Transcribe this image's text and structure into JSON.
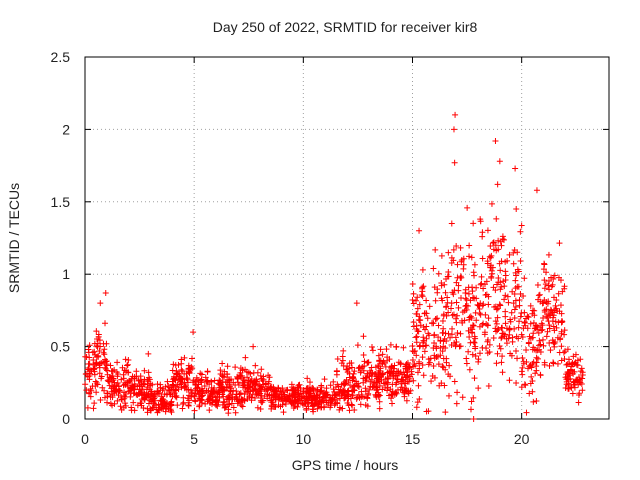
{
  "chart_data": {
    "type": "scatter",
    "title": "Day 250 of 2022, SRMTID for receiver kir8",
    "xlabel": "GPS time / hours",
    "ylabel": "SRMTID / TECUs",
    "xlim": [
      0,
      24
    ],
    "ylim": [
      0,
      2.5
    ],
    "xticks": [
      0,
      5,
      10,
      15,
      20
    ],
    "yticks": [
      0,
      0.5,
      1,
      1.5,
      2,
      2.5
    ],
    "xtick_labels": [
      "0",
      "5",
      "10",
      "15",
      "20"
    ],
    "ytick_labels": [
      "0",
      "0.5",
      "1",
      "1.5",
      "2",
      "2.5"
    ],
    "grid": true,
    "marker": "+",
    "color": "#ff0000",
    "outlier": {
      "x": 17.8,
      "y": 0.0
    },
    "notable_points": [
      {
        "x": 16.95,
        "y": 2.1
      },
      {
        "x": 16.9,
        "y": 2.0
      },
      {
        "x": 16.93,
        "y": 1.77
      },
      {
        "x": 18.8,
        "y": 1.92
      },
      {
        "x": 19.0,
        "y": 1.78
      },
      {
        "x": 18.9,
        "y": 1.62
      },
      {
        "x": 19.7,
        "y": 1.73
      },
      {
        "x": 20.7,
        "y": 1.58
      },
      {
        "x": 19.75,
        "y": 1.45
      },
      {
        "x": 18.1,
        "y": 1.38
      },
      {
        "x": 16.8,
        "y": 1.35
      },
      {
        "x": 15.3,
        "y": 1.3
      },
      {
        "x": 0.95,
        "y": 0.87
      },
      {
        "x": 0.7,
        "y": 0.8
      },
      {
        "x": 12.45,
        "y": 0.8
      },
      {
        "x": 4.95,
        "y": 0.6
      },
      {
        "x": 7.7,
        "y": 0.5
      },
      {
        "x": 2.9,
        "y": 0.45
      }
    ],
    "segments": [
      {
        "x0": 0.0,
        "x1": 0.5,
        "y_mean": 0.33,
        "y_spread": 0.1
      },
      {
        "x0": 0.5,
        "x1": 1.0,
        "y_mean": 0.4,
        "y_spread": 0.12
      },
      {
        "x0": 1.0,
        "x1": 2.0,
        "y_mean": 0.25,
        "y_spread": 0.08
      },
      {
        "x0": 2.0,
        "x1": 3.0,
        "y_mean": 0.2,
        "y_spread": 0.07
      },
      {
        "x0": 3.0,
        "x1": 4.0,
        "y_mean": 0.14,
        "y_spread": 0.06
      },
      {
        "x0": 4.0,
        "x1": 5.0,
        "y_mean": 0.24,
        "y_spread": 0.09
      },
      {
        "x0": 5.0,
        "x1": 6.0,
        "y_mean": 0.18,
        "y_spread": 0.06
      },
      {
        "x0": 6.0,
        "x1": 7.0,
        "y_mean": 0.2,
        "y_spread": 0.07
      },
      {
        "x0": 7.0,
        "x1": 8.5,
        "y_mean": 0.22,
        "y_spread": 0.07
      },
      {
        "x0": 8.5,
        "x1": 10.0,
        "y_mean": 0.15,
        "y_spread": 0.04
      },
      {
        "x0": 10.0,
        "x1": 11.5,
        "y_mean": 0.15,
        "y_spread": 0.05
      },
      {
        "x0": 11.5,
        "x1": 12.5,
        "y_mean": 0.22,
        "y_spread": 0.09
      },
      {
        "x0": 12.5,
        "x1": 13.5,
        "y_mean": 0.3,
        "y_spread": 0.1
      },
      {
        "x0": 13.5,
        "x1": 15.0,
        "y_mean": 0.3,
        "y_spread": 0.09
      },
      {
        "x0": 15.0,
        "x1": 16.0,
        "y_mean": 0.55,
        "y_spread": 0.22
      },
      {
        "x0": 16.0,
        "x1": 17.0,
        "y_mean": 0.65,
        "y_spread": 0.25
      },
      {
        "x0": 17.0,
        "x1": 18.0,
        "y_mean": 0.7,
        "y_spread": 0.28
      },
      {
        "x0": 18.0,
        "x1": 19.0,
        "y_mean": 0.85,
        "y_spread": 0.28
      },
      {
        "x0": 19.0,
        "x1": 20.0,
        "y_mean": 0.8,
        "y_spread": 0.25
      },
      {
        "x0": 20.0,
        "x1": 21.0,
        "y_mean": 0.55,
        "y_spread": 0.2
      },
      {
        "x0": 21.0,
        "x1": 22.0,
        "y_mean": 0.7,
        "y_spread": 0.22
      },
      {
        "x0": 22.0,
        "x1": 22.8,
        "y_mean": 0.3,
        "y_spread": 0.08
      }
    ]
  }
}
